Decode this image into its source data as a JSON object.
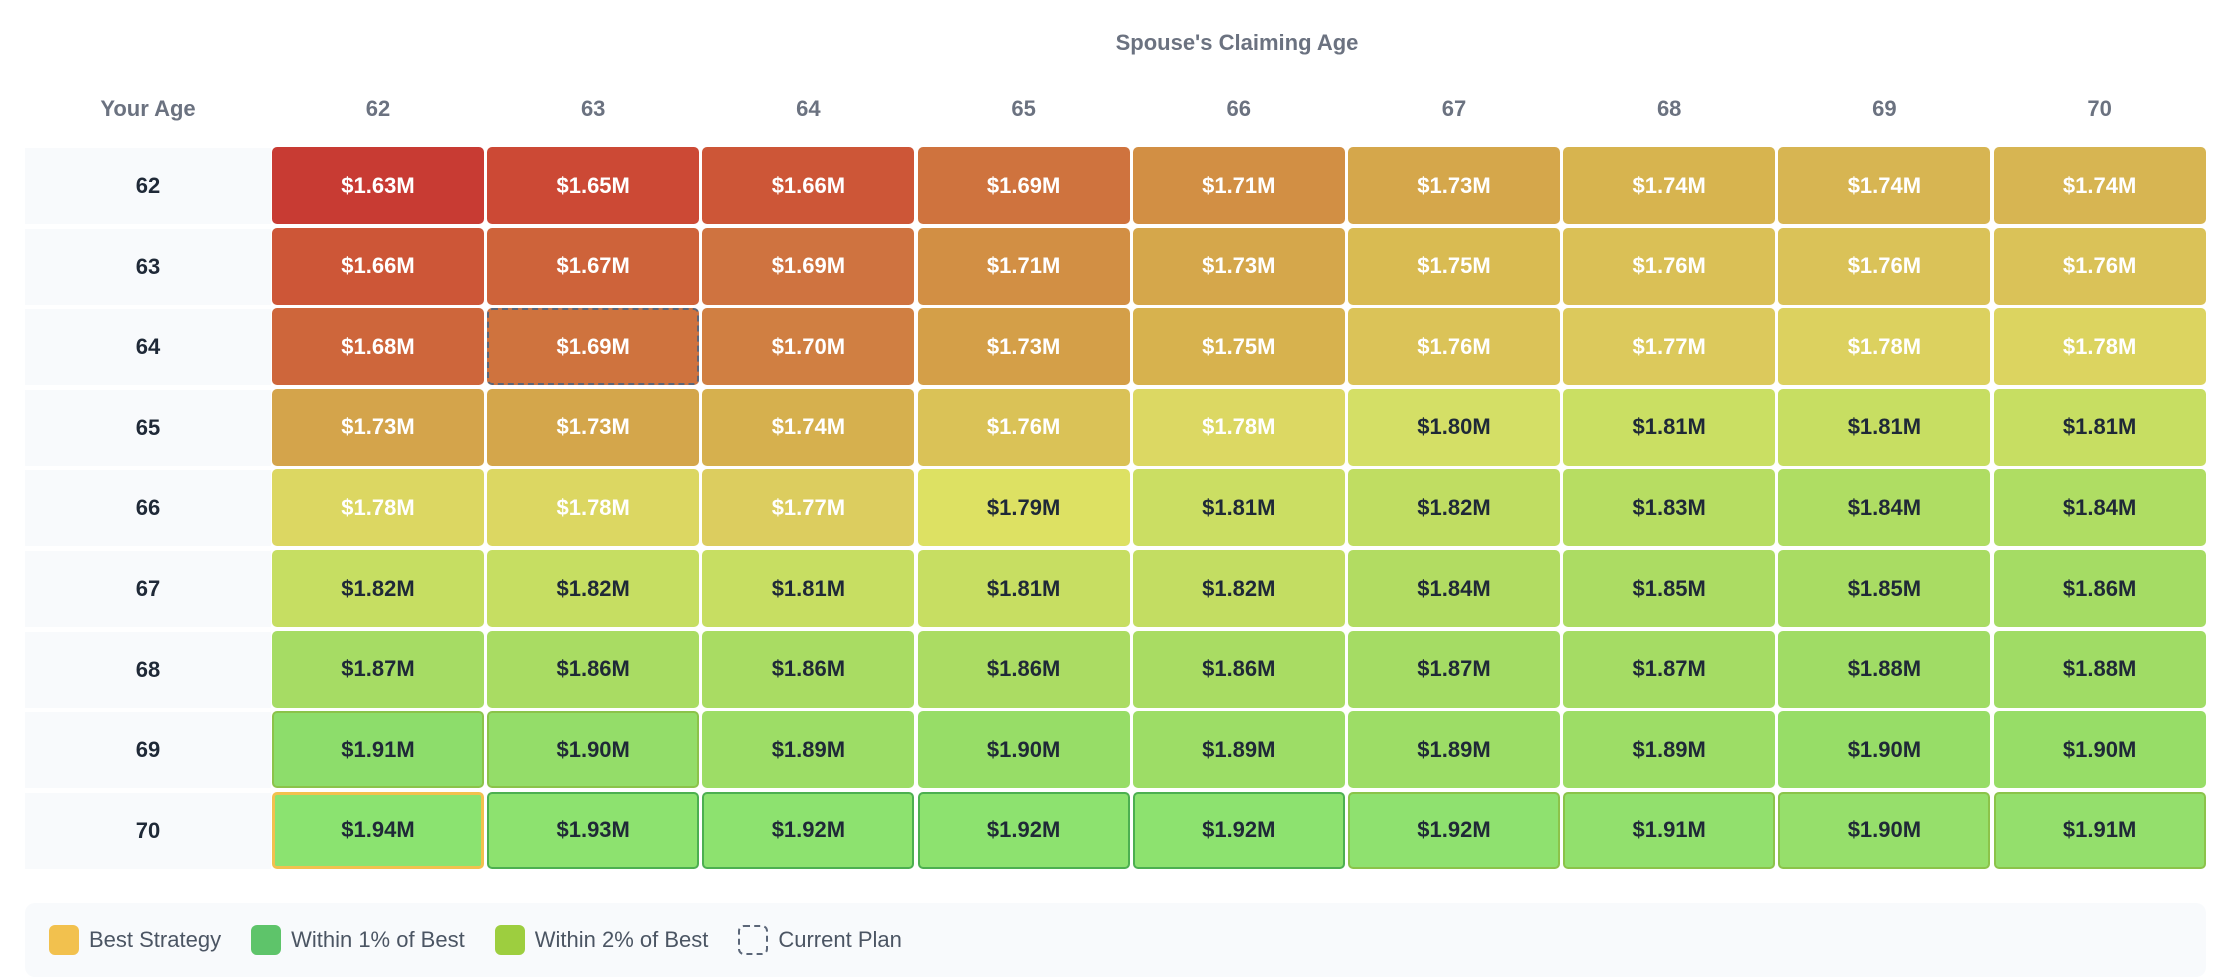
{
  "chart_data": {
    "type": "heatmap",
    "title": "Spouse's Claiming Age",
    "row_header": "Your Age",
    "columns": [
      "62",
      "63",
      "64",
      "65",
      "66",
      "67",
      "68",
      "69",
      "70"
    ],
    "rows": [
      "62",
      "63",
      "64",
      "65",
      "66",
      "67",
      "68",
      "69",
      "70"
    ],
    "values": [
      [
        "$1.63M",
        "$1.65M",
        "$1.66M",
        "$1.69M",
        "$1.71M",
        "$1.73M",
        "$1.74M",
        "$1.74M",
        "$1.74M"
      ],
      [
        "$1.66M",
        "$1.67M",
        "$1.69M",
        "$1.71M",
        "$1.73M",
        "$1.75M",
        "$1.76M",
        "$1.76M",
        "$1.76M"
      ],
      [
        "$1.68M",
        "$1.69M",
        "$1.70M",
        "$1.73M",
        "$1.75M",
        "$1.76M",
        "$1.77M",
        "$1.78M",
        "$1.78M"
      ],
      [
        "$1.73M",
        "$1.73M",
        "$1.74M",
        "$1.76M",
        "$1.78M",
        "$1.80M",
        "$1.81M",
        "$1.81M",
        "$1.81M"
      ],
      [
        "$1.78M",
        "$1.78M",
        "$1.77M",
        "$1.79M",
        "$1.81M",
        "$1.82M",
        "$1.83M",
        "$1.84M",
        "$1.84M"
      ],
      [
        "$1.82M",
        "$1.82M",
        "$1.81M",
        "$1.81M",
        "$1.82M",
        "$1.84M",
        "$1.85M",
        "$1.85M",
        "$1.86M"
      ],
      [
        "$1.87M",
        "$1.86M",
        "$1.86M",
        "$1.86M",
        "$1.86M",
        "$1.87M",
        "$1.87M",
        "$1.88M",
        "$1.88M"
      ],
      [
        "$1.91M",
        "$1.90M",
        "$1.89M",
        "$1.90M",
        "$1.89M",
        "$1.89M",
        "$1.89M",
        "$1.90M",
        "$1.90M"
      ],
      [
        "$1.94M",
        "$1.93M",
        "$1.92M",
        "$1.92M",
        "$1.92M",
        "$1.92M",
        "$1.91M",
        "$1.90M",
        "$1.91M"
      ]
    ],
    "colors": [
      [
        "#c83b33",
        "#cc4935",
        "#cd5637",
        "#cf733e",
        "#d28f44",
        "#d5a74b",
        "#d7b44f",
        "#d7b552",
        "#d7b552"
      ],
      [
        "#cd5637",
        "#ce633a",
        "#cf7340",
        "#d28f44",
        "#d5a74b",
        "#d9bb52",
        "#dac056",
        "#dac258",
        "#dac258"
      ],
      [
        "#ce663b",
        "#cf733e",
        "#d07f42",
        "#d49f48",
        "#d7b24e",
        "#dbc358",
        "#dcc95c",
        "#dcd15f",
        "#dcd460"
      ],
      [
        "#d4a44b",
        "#d4a64b",
        "#d6b04e",
        "#dac257",
        "#dcd863",
        "#d4df66",
        "#cadf63",
        "#c7de62",
        "#c7de62"
      ],
      [
        "#dcd762",
        "#dcd762",
        "#dccd5f",
        "#dde163",
        "#cbde63",
        "#c0dd62",
        "#b7dd62",
        "#afdd63",
        "#afdd63"
      ],
      [
        "#c6de62",
        "#c6de62",
        "#c7de62",
        "#c7de62",
        "#c3dd62",
        "#b2dc62",
        "#acdc63",
        "#a9dc63",
        "#a5dc64"
      ],
      [
        "#a6dc64",
        "#a9dc63",
        "#a9dc63",
        "#abdc63",
        "#a9dc63",
        "#a5dc64",
        "#a5dc64",
        "#a0dc65",
        "#a0dc65"
      ],
      [
        "#8ddd6b",
        "#94dd69",
        "#9ddd66",
        "#97dd67",
        "#9ddd66",
        "#9ddd66",
        "#9ddd66",
        "#97dd67",
        "#97dd67"
      ],
      [
        "#8be370",
        "#8de26f",
        "#8de26f",
        "#8de26f",
        "#8de26f",
        "#8fe16f",
        "#92e06d",
        "#96df6b",
        "#94df6c"
      ]
    ],
    "text_tone": [
      [
        "light",
        "light",
        "light",
        "light",
        "light",
        "light",
        "light",
        "light",
        "light"
      ],
      [
        "light",
        "light",
        "light",
        "light",
        "light",
        "light",
        "light",
        "light",
        "light"
      ],
      [
        "light",
        "light",
        "light",
        "light",
        "light",
        "light",
        "light",
        "light",
        "light"
      ],
      [
        "light",
        "light",
        "light",
        "light",
        "light",
        "dark",
        "dark",
        "dark",
        "dark"
      ],
      [
        "light",
        "light",
        "light",
        "dark",
        "dark",
        "dark",
        "dark",
        "dark",
        "dark"
      ],
      [
        "dark",
        "dark",
        "dark",
        "dark",
        "dark",
        "dark",
        "dark",
        "dark",
        "dark"
      ],
      [
        "dark",
        "dark",
        "dark",
        "dark",
        "dark",
        "dark",
        "dark",
        "dark",
        "dark"
      ],
      [
        "dark",
        "dark",
        "dark",
        "dark",
        "dark",
        "dark",
        "dark",
        "dark",
        "dark"
      ],
      [
        "dark",
        "dark",
        "dark",
        "dark",
        "dark",
        "dark",
        "dark",
        "dark",
        "dark"
      ]
    ],
    "status": [
      [
        "",
        "",
        "",
        "",
        "",
        "",
        "",
        "",
        ""
      ],
      [
        "",
        "",
        "",
        "",
        "",
        "",
        "",
        "",
        ""
      ],
      [
        "",
        "current",
        "",
        "",
        "",
        "",
        "",
        "",
        ""
      ],
      [
        "",
        "",
        "",
        "",
        "",
        "",
        "",
        "",
        ""
      ],
      [
        "",
        "",
        "",
        "",
        "",
        "",
        "",
        "",
        ""
      ],
      [
        "",
        "",
        "",
        "",
        "",
        "",
        "",
        "",
        ""
      ],
      [
        "",
        "",
        "",
        "",
        "",
        "",
        "",
        "",
        ""
      ],
      [
        "w2",
        "w2",
        "",
        "",
        "",
        "",
        "",
        "",
        ""
      ],
      [
        "best",
        "w1",
        "w1",
        "w1",
        "w1",
        "w2",
        "w2",
        "w2",
        "w2"
      ]
    ]
  },
  "legend": [
    {
      "label": "Best Strategy",
      "key": "best"
    },
    {
      "label": "Within 1% of Best",
      "key": "w1"
    },
    {
      "label": "Within 2% of Best",
      "key": "w2"
    },
    {
      "label": "Current Plan",
      "key": "current"
    }
  ]
}
